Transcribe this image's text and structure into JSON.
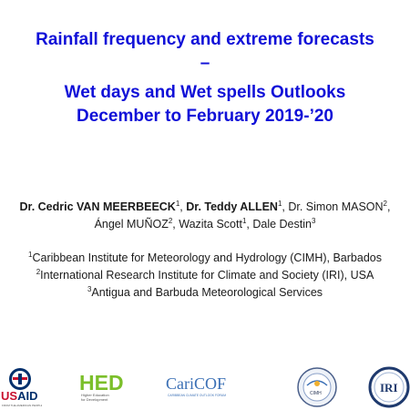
{
  "title": {
    "line1": "Rainfall frequency and extreme forecasts",
    "line2": "–",
    "line3": "Wet days and Wet spells Outlooks",
    "line4": "December to February 2019-’20"
  },
  "authors": {
    "a1_name": "Dr. Cedric VAN MEERBEECK",
    "a1_sup": "1",
    "sep1": ", ",
    "a2_name": "Dr. Teddy ALLEN",
    "a2_sup": "1",
    "sep2": ", Dr. Simon MASON",
    "a3_sup": "2",
    "sep3": ",",
    "a4_name": "Ángel MUÑOZ",
    "a4_sup": "2",
    "a5_name": ", Wazita Scott",
    "a5_sup": "1",
    "a6_name": ", Dale Destin",
    "a6_sup": "3"
  },
  "affiliations": [
    {
      "sup": "1",
      "text": "Caribbean Institute for Meteorology and Hydrology (CIMH), Barbados"
    },
    {
      "sup": "2",
      "text": "International Research Institute for Climate and Society (IRI), USA"
    },
    {
      "sup": "3",
      "text": "Antigua and Barbuda Meteorological Services"
    }
  ],
  "logos": {
    "usaid": "USAID",
    "usaid_tagline": "FROM THE AMERICAN PEOPLE",
    "hed": "HED",
    "hed_tagline": "Higher Education for Development",
    "caricof": "CariCOF",
    "caricof_tagline": "CARIBBEAN CLIMATE OUTLOOK FORUM",
    "cimh": "CIMH",
    "iri": "IRI"
  },
  "colors": {
    "title": "#1010d8",
    "body_text": "#1a1a1a",
    "usaid_red": "#c8102e",
    "usaid_blue": "#002f6c",
    "hed_green": "#7bbf2a",
    "caricof_blue": "#3a6fb5"
  }
}
